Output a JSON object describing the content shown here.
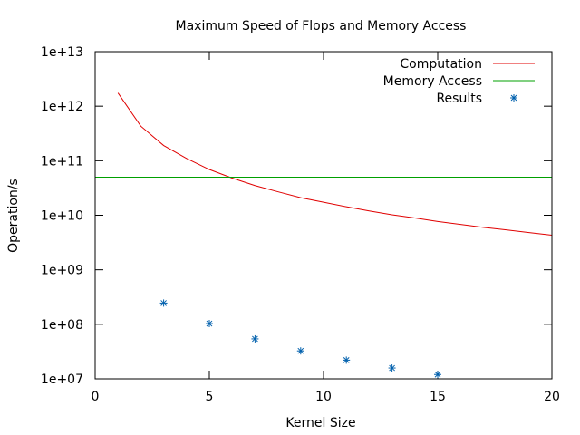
{
  "chart_data": {
    "type": "line",
    "title": "Maximum Speed of Flops and Memory Access",
    "xlabel": "Kernel Size",
    "ylabel": "Operation/s",
    "xlim": [
      0,
      20
    ],
    "ylim": [
      10000000,
      10000000000000
    ],
    "yscale": "log",
    "grid": false,
    "legend_position": "top-right",
    "x_ticks": [
      {
        "value": 0,
        "label": "0"
      },
      {
        "value": 5,
        "label": "5"
      },
      {
        "value": 10,
        "label": "10"
      },
      {
        "value": 15,
        "label": "15"
      },
      {
        "value": 20,
        "label": "20"
      }
    ],
    "y_ticks": [
      {
        "value": 10000000,
        "label": "1e+07"
      },
      {
        "value": 100000000,
        "label": "1e+08"
      },
      {
        "value": 1000000000,
        "label": "1e+09"
      },
      {
        "value": 10000000000,
        "label": "1e+10"
      },
      {
        "value": 100000000000,
        "label": "1e+11"
      },
      {
        "value": 1000000000000,
        "label": "1e+12"
      },
      {
        "value": 10000000000000,
        "label": "1e+13"
      }
    ],
    "series": [
      {
        "name": "Computation",
        "style": "line",
        "color": "#e00000",
        "x": [
          1,
          2,
          3,
          4,
          5,
          6,
          7,
          8,
          9,
          10,
          11,
          12,
          13,
          14,
          15,
          16,
          17,
          18,
          19,
          20
        ],
        "y": [
          1750000000000,
          430000000000,
          190000000000,
          110000000000,
          69000000000,
          48000000000,
          35000000000,
          27000000000,
          21000000000,
          17300000000,
          14300000000,
          12000000000,
          10200000000,
          8900000000,
          7700000000,
          6800000000,
          6000000000,
          5400000000,
          4800000000,
          4300000000
        ]
      },
      {
        "name": "Memory Access",
        "style": "line",
        "color": "#00a000",
        "x": [
          0,
          20
        ],
        "y": [
          50000000000,
          50000000000
        ]
      },
      {
        "name": "Results",
        "style": "points",
        "marker": "star",
        "color": "#0060ad",
        "x": [
          3,
          5,
          7,
          9,
          11,
          13,
          15
        ],
        "y": [
          245000000,
          103000000,
          54000000,
          32500000,
          22000000,
          15800000,
          12000000
        ]
      }
    ]
  }
}
